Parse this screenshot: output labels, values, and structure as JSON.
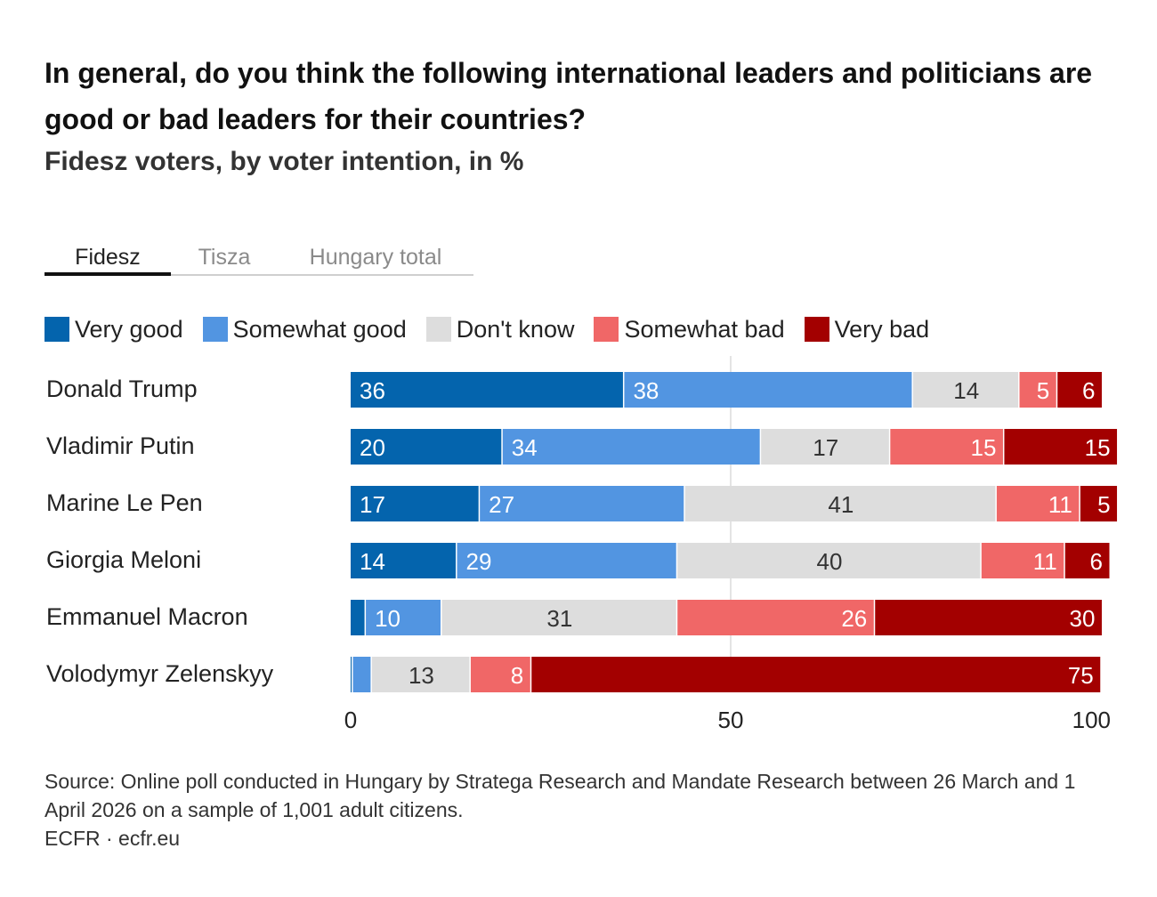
{
  "title": "In general, do you think the following international leaders and politicians are good or bad leaders for their countries?",
  "subtitle": "Fidesz voters, by voter intention, in %",
  "tabs": [
    {
      "label": "Fidesz",
      "active": true
    },
    {
      "label": "Tisza",
      "active": false
    },
    {
      "label": "Hungary total",
      "active": false
    }
  ],
  "colors": {
    "very_good": "#0464ad",
    "somewhat_good": "#5295e1",
    "dont_know": "#dddddd",
    "somewhat_bad": "#f06767",
    "very_bad": "#a30000",
    "label_light": "#ffffff",
    "label_dark": "#333333",
    "grid": "#e4e4e4"
  },
  "chart_data": {
    "type": "bar",
    "orientation": "horizontal",
    "stacked": true,
    "categories": [
      "Donald Trump",
      "Vladimir Putin",
      "Marine Le Pen",
      "Giorgia Meloni",
      "Emmanuel Macron",
      "Volodymyr Zelenskyy"
    ],
    "series": [
      {
        "name": "Very good",
        "key": "very_good",
        "values": [
          36,
          20,
          17,
          14,
          2,
          0.3
        ]
      },
      {
        "name": "Somewhat good",
        "key": "somewhat_good",
        "values": [
          38,
          34,
          27,
          29,
          10,
          2.5
        ]
      },
      {
        "name": "Don't know",
        "key": "dont_know",
        "values": [
          14,
          17,
          41,
          40,
          31,
          13
        ]
      },
      {
        "name": "Somewhat bad",
        "key": "somewhat_bad",
        "values": [
          5,
          15,
          11,
          11,
          26,
          8
        ]
      },
      {
        "name": "Very bad",
        "key": "very_bad",
        "values": [
          6,
          15,
          5,
          6,
          30,
          75
        ]
      }
    ],
    "data_labels": [
      [
        "36",
        "38",
        "14",
        "5",
        "6"
      ],
      [
        "20",
        "34",
        "17",
        "15",
        "15"
      ],
      [
        "17",
        "27",
        "41",
        "11",
        "5"
      ],
      [
        "14",
        "29",
        "40",
        "11",
        "6"
      ],
      [
        "",
        "10",
        "31",
        "26",
        "30"
      ],
      [
        "",
        "",
        "13",
        "8",
        "75"
      ]
    ],
    "xlim": [
      0,
      100
    ],
    "xticks": [
      "0",
      "50",
      "100"
    ],
    "grid": true,
    "legend_position": "top-left"
  },
  "footer": {
    "source": "Source: Online poll conducted in Hungary by Stratega Research and Mandate Research between 26 March and 1 April 2026 on a sample of 1,001 adult citizens.",
    "credit": "ECFR · ecfr.eu"
  }
}
